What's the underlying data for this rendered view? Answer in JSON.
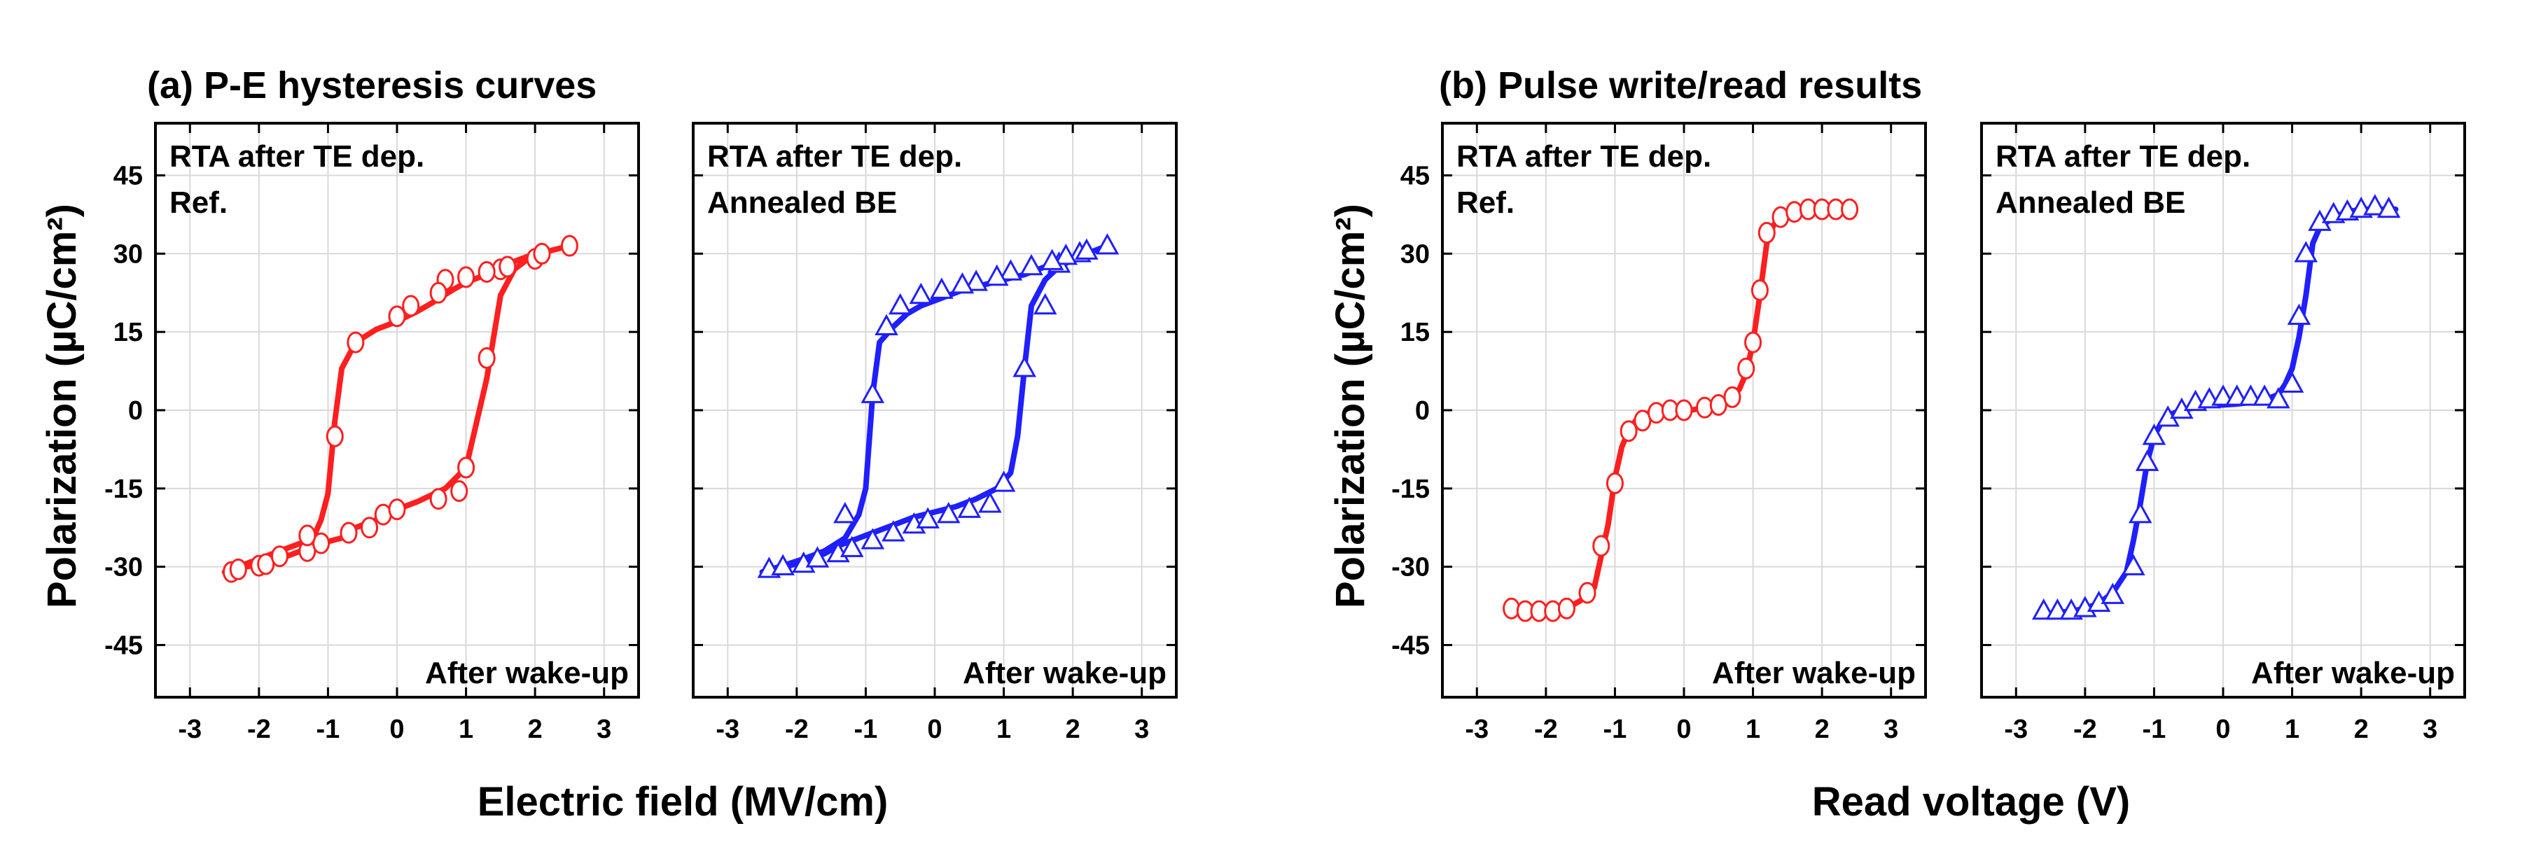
{
  "chart_data": [
    {
      "type": "line",
      "panel_title": "(a) P-E hysteresis curves",
      "title": "RTA after TE dep.",
      "series": [
        {
          "name": "Ref.",
          "color": "#ff1f1f",
          "marker": "circle",
          "x": [
            -2.5,
            -2.4,
            -2.3,
            -2.1,
            -1.9,
            -1.6,
            -1.4,
            -1.1,
            -0.8,
            -0.6,
            -0.3,
            0,
            0.3,
            0.7,
            1.0,
            1.3,
            1.5,
            1.7,
            1.9,
            2.2,
            2.5,
            2.5,
            2.2,
            1.9,
            1.7,
            1.5,
            1.4,
            1.3,
            1.2,
            1.0,
            0.8,
            0.5,
            0.3,
            0,
            -0.3,
            -0.6,
            -0.8,
            -0.9,
            -1.0,
            -1.1,
            -1.2,
            -1.4,
            -1.6,
            -1.9,
            -2.2,
            -2.5
          ],
          "y": [
            -31,
            -30.5,
            -30.3,
            -29.8,
            -29,
            -28,
            -27,
            -25.5,
            -24.5,
            -22.5,
            -21,
            -19,
            -17.5,
            -15,
            -11,
            6,
            22,
            27,
            29,
            30.5,
            31.5,
            31.5,
            30.5,
            29.5,
            28.5,
            27.5,
            26.5,
            26,
            25.5,
            24.5,
            23,
            20.5,
            19,
            17,
            15.5,
            13,
            8,
            -2,
            -16,
            -21,
            -24,
            -25.5,
            -26.5,
            -28,
            -29.5,
            -31
          ]
        },
        {
          "name": "Ref. markers",
          "color": "#ff1f1f",
          "marker": "circle",
          "markers_only": true,
          "x": [
            -2.4,
            -2.3,
            -2.0,
            -1.9,
            -1.7,
            -1.3,
            -1.1,
            -0.7,
            -0.4,
            -0.2,
            0,
            0.6,
            0.9,
            1.0,
            1.3,
            1.5,
            2.0,
            2.5,
            2.1,
            1.6,
            1.3,
            1.0,
            0.7,
            0.6,
            0.2,
            0,
            -0.6,
            -0.9,
            -1.3
          ],
          "y": [
            -31,
            -30.5,
            -29.8,
            -29.5,
            -28,
            -27,
            -25.5,
            -23.5,
            -22.5,
            -20,
            -19,
            -17,
            -15.5,
            -11,
            10,
            27,
            29,
            31.5,
            30,
            27.5,
            26.5,
            25.5,
            25,
            22.5,
            20,
            18,
            13,
            -5,
            -24
          ]
        }
      ],
      "legend": "Ref.",
      "xlabel": "Electric field (MV/cm)",
      "ylabel": "Polarization (µC/cm²)",
      "annotation": "After wake-up",
      "xlim": [
        -3.5,
        3.5
      ],
      "ylim": [
        -55,
        55
      ],
      "xticks": [
        "-3",
        "-2",
        "-1",
        "0",
        "1",
        "2",
        "3"
      ],
      "yticks": [
        "-45",
        "-30",
        "-15",
        "0",
        "15",
        "30",
        "45"
      ]
    },
    {
      "type": "line",
      "title": "RTA after TE dep.",
      "series": [
        {
          "name": "Annealed BE",
          "color": "#1f1fff",
          "marker": "triangle",
          "x": [
            -2.5,
            -2.3,
            -2.1,
            -1.9,
            -1.6,
            -1.4,
            -1.2,
            -1.0,
            -0.8,
            -0.5,
            -0.3,
            0,
            0.3,
            0.6,
            0.9,
            1.1,
            1.2,
            1.3,
            1.4,
            1.6,
            1.8,
            2.1,
            2.3,
            2.5,
            2.5,
            2.3,
            2.1,
            1.8,
            1.5,
            1.3,
            1.0,
            0.7,
            0.4,
            0.1,
            -0.2,
            -0.4,
            -0.6,
            -0.8,
            -0.9,
            -1.0,
            -1.1,
            -1.3,
            -1.6,
            -1.9,
            -2.2,
            -2.5
          ],
          "y": [
            -31,
            -30.5,
            -29.8,
            -29,
            -27.5,
            -26,
            -25,
            -24,
            -23,
            -21.5,
            -20.5,
            -19.5,
            -18.5,
            -17,
            -15,
            -12,
            -5,
            8,
            20,
            25,
            27.5,
            29.5,
            30.5,
            31.5,
            31.5,
            30.5,
            29.5,
            28.5,
            27,
            26,
            25,
            24,
            23,
            21.5,
            20,
            18.5,
            16,
            13,
            3,
            -15,
            -20,
            -24.5,
            -27,
            -28.5,
            -29.8,
            -31
          ]
        },
        {
          "name": "Annealed BE markers",
          "color": "#1f1fff",
          "marker": "triangle",
          "markers_only": true,
          "x": [
            -2.4,
            -2.2,
            -1.9,
            -1.7,
            -1.4,
            -1.2,
            -0.9,
            -0.6,
            -0.3,
            -0.1,
            0.2,
            0.5,
            0.8,
            1.0,
            1.3,
            1.6,
            1.8,
            2.1,
            2.5,
            2.2,
            1.9,
            1.7,
            1.4,
            1.1,
            0.9,
            0.6,
            0.4,
            0.1,
            -0.2,
            -0.5,
            -0.7,
            -0.9,
            -1.3
          ],
          "y": [
            -30.5,
            -30,
            -29.5,
            -28.5,
            -27.5,
            -26.5,
            -25,
            -23.5,
            -22,
            -21,
            -20,
            -19,
            -18,
            -14,
            8,
            20,
            28,
            30,
            31.5,
            30.5,
            29.5,
            28.5,
            27.5,
            26.5,
            25.5,
            24.5,
            24,
            23,
            22,
            20,
            16,
            3,
            -20
          ]
        }
      ],
      "legend": "Annealed BE",
      "annotation": "After wake-up",
      "xlim": [
        -3.5,
        3.5
      ],
      "ylim": [
        -55,
        55
      ],
      "xticks": [
        "-3",
        "-2",
        "-1",
        "0",
        "1",
        "2",
        "3"
      ]
    },
    {
      "type": "line",
      "panel_title": "(b) Pulse write/read results",
      "title": "RTA after TE dep.",
      "series": [
        {
          "name": "Ref.",
          "color": "#ff1f1f",
          "marker": "circle",
          "x": [
            -2.5,
            -2.3,
            -2.1,
            -1.9,
            -1.7,
            -1.5,
            -1.3,
            -1.2,
            -1.1,
            -1.0,
            -0.9,
            -0.8,
            -0.7,
            -0.5,
            -0.3,
            -0.1,
            0.1,
            0.3,
            0.5,
            0.7,
            0.8,
            0.9,
            1.0,
            1.1,
            1.2,
            1.3,
            1.4,
            1.6,
            1.8,
            2.0,
            2.2,
            2.4
          ],
          "y": [
            -38,
            -38.5,
            -38.5,
            -38.5,
            -38,
            -36.5,
            -34,
            -28,
            -22,
            -13,
            -7,
            -4,
            -2,
            -0.5,
            0,
            0,
            0,
            0.5,
            1,
            2.5,
            4,
            7,
            13,
            22,
            32,
            35.5,
            37,
            38,
            38.5,
            38.5,
            38.5,
            38.5
          ]
        },
        {
          "name": "Ref. markers",
          "color": "#ff1f1f",
          "marker": "circle",
          "markers_only": true,
          "x": [
            -2.5,
            -2.3,
            -2.1,
            -1.9,
            -1.7,
            -1.4,
            -1.2,
            -1.0,
            -0.8,
            -0.6,
            -0.4,
            -0.2,
            0,
            0.3,
            0.5,
            0.7,
            0.9,
            1.0,
            1.1,
            1.2,
            1.4,
            1.6,
            1.8,
            2.0,
            2.2,
            2.4
          ],
          "y": [
            -38,
            -38.5,
            -38.5,
            -38.5,
            -38,
            -35,
            -26,
            -14,
            -4,
            -2,
            -0.5,
            0,
            0,
            0.5,
            1,
            2.5,
            8,
            13,
            23,
            34,
            37,
            38,
            38.5,
            38.5,
            38.5,
            38.5
          ]
        }
      ],
      "legend": "Ref.",
      "xlabel": "Read voltage (V)",
      "ylabel": "Polarization (µC/cm²)",
      "annotation": "After wake-up",
      "xlim": [
        -3.5,
        3.5
      ],
      "ylim": [
        -55,
        55
      ],
      "xticks": [
        "-3",
        "-2",
        "-1",
        "0",
        "1",
        "2",
        "3"
      ],
      "yticks": [
        "-45",
        "-30",
        "-15",
        "0",
        "15",
        "30",
        "45"
      ]
    },
    {
      "type": "line",
      "title": "RTA after TE dep.",
      "series": [
        {
          "name": "Annealed BE",
          "color": "#1f1fff",
          "marker": "triangle",
          "x": [
            -2.6,
            -2.4,
            -2.2,
            -2.0,
            -1.8,
            -1.6,
            -1.4,
            -1.3,
            -1.2,
            -1.1,
            -1.0,
            -0.9,
            -0.8,
            -0.6,
            -0.4,
            -0.2,
            0,
            0.2,
            0.4,
            0.6,
            0.8,
            0.9,
            1.0,
            1.1,
            1.2,
            1.3,
            1.4,
            1.6,
            1.8,
            2.0,
            2.2,
            2.4,
            2.5
          ],
          "y": [
            -39,
            -38.8,
            -38.5,
            -38,
            -37,
            -35,
            -31,
            -25,
            -18,
            -10,
            -5,
            -2.5,
            -1,
            0,
            0.5,
            1,
            1,
            1.2,
            1.5,
            2,
            3,
            5,
            8,
            14,
            22,
            32,
            35,
            37,
            38,
            38.5,
            38.5,
            38.5,
            38.5
          ]
        },
        {
          "name": "Annealed BE markers",
          "color": "#1f1fff",
          "marker": "triangle",
          "markers_only": true,
          "x": [
            -2.6,
            -2.4,
            -2.2,
            -2.0,
            -1.8,
            -1.6,
            -1.3,
            -1.2,
            -1.1,
            -1.0,
            -0.8,
            -0.6,
            -0.4,
            -0.2,
            0,
            0.2,
            0.4,
            0.6,
            0.8,
            1.0,
            1.1,
            1.2,
            1.4,
            1.6,
            1.8,
            2.0,
            2.2,
            2.4
          ],
          "y": [
            -38.5,
            -38.5,
            -38.5,
            -38,
            -37,
            -35.5,
            -30,
            -20,
            -10,
            -5,
            -1.5,
            0,
            1.5,
            2,
            2.5,
            2.5,
            2.5,
            2.5,
            2,
            5,
            18,
            30,
            36,
            37.5,
            38,
            38.5,
            39,
            38.5
          ]
        }
      ],
      "legend": "Annealed BE",
      "annotation": "After wake-up",
      "xlim": [
        -3.5,
        3.5
      ],
      "ylim": [
        -55,
        55
      ],
      "xticks": [
        "-3",
        "-2",
        "-1",
        "0",
        "1",
        "2",
        "3"
      ]
    }
  ]
}
